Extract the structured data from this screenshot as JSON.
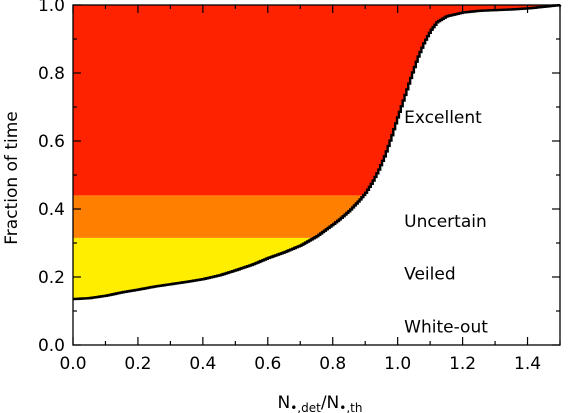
{
  "chart_data": {
    "type": "area",
    "xlabel_main": "N",
    "xlabel_sub_num": "•,det",
    "xlabel_sep": "/N",
    "xlabel_sub_den": "•,th",
    "ylabel": "Fraction of time",
    "xlim": [
      0.0,
      1.5
    ],
    "ylim": [
      0.0,
      1.0
    ],
    "xticks": [
      0.0,
      0.2,
      0.4,
      0.6,
      0.8,
      1.0,
      1.2,
      1.4
    ],
    "xtick_labels": [
      "0.0",
      "0.2",
      "0.4",
      "0.6",
      "0.8",
      "1.0",
      "1.2",
      "1.4"
    ],
    "yticks": [
      0.0,
      0.2,
      0.4,
      0.6,
      0.8,
      1.0
    ],
    "ytick_labels": [
      "0.0",
      "0.2",
      "0.4",
      "0.6",
      "0.8",
      "1.0"
    ],
    "grid": false,
    "curve": {
      "x": [
        0.0,
        0.05,
        0.1,
        0.15,
        0.2,
        0.25,
        0.3,
        0.35,
        0.4,
        0.45,
        0.5,
        0.55,
        0.6,
        0.65,
        0.7,
        0.75,
        0.8,
        0.82,
        0.85,
        0.88,
        0.9,
        0.92,
        0.94,
        0.96,
        0.98,
        1.0,
        1.02,
        1.04,
        1.06,
        1.08,
        1.1,
        1.12,
        1.15,
        1.2,
        1.25,
        1.3,
        1.35,
        1.4,
        1.45,
        1.5
      ],
      "y": [
        0.135,
        0.138,
        0.145,
        0.155,
        0.163,
        0.172,
        0.179,
        0.186,
        0.194,
        0.205,
        0.22,
        0.236,
        0.256,
        0.273,
        0.293,
        0.32,
        0.355,
        0.37,
        0.395,
        0.425,
        0.448,
        0.478,
        0.515,
        0.56,
        0.615,
        0.675,
        0.732,
        0.79,
        0.845,
        0.89,
        0.925,
        0.95,
        0.967,
        0.978,
        0.983,
        0.985,
        0.987,
        0.99,
        0.995,
        1.0
      ]
    },
    "bands": [
      {
        "label": "White-out",
        "y0": 0.0,
        "y1": 0.135,
        "color": "#ffffff",
        "label_y": 0.055
      },
      {
        "label": "Veiled",
        "y0": 0.135,
        "y1": 0.315,
        "color": "#ffee00",
        "label_y": 0.21
      },
      {
        "label": "Uncertain",
        "y0": 0.315,
        "y1": 0.44,
        "color": "#ff7f00",
        "label_y": 0.365
      },
      {
        "label": "Excellent",
        "y0": 0.44,
        "y1": 1.0,
        "color": "#ff2200",
        "label_y": 0.67
      }
    ],
    "label_x": 1.02
  }
}
